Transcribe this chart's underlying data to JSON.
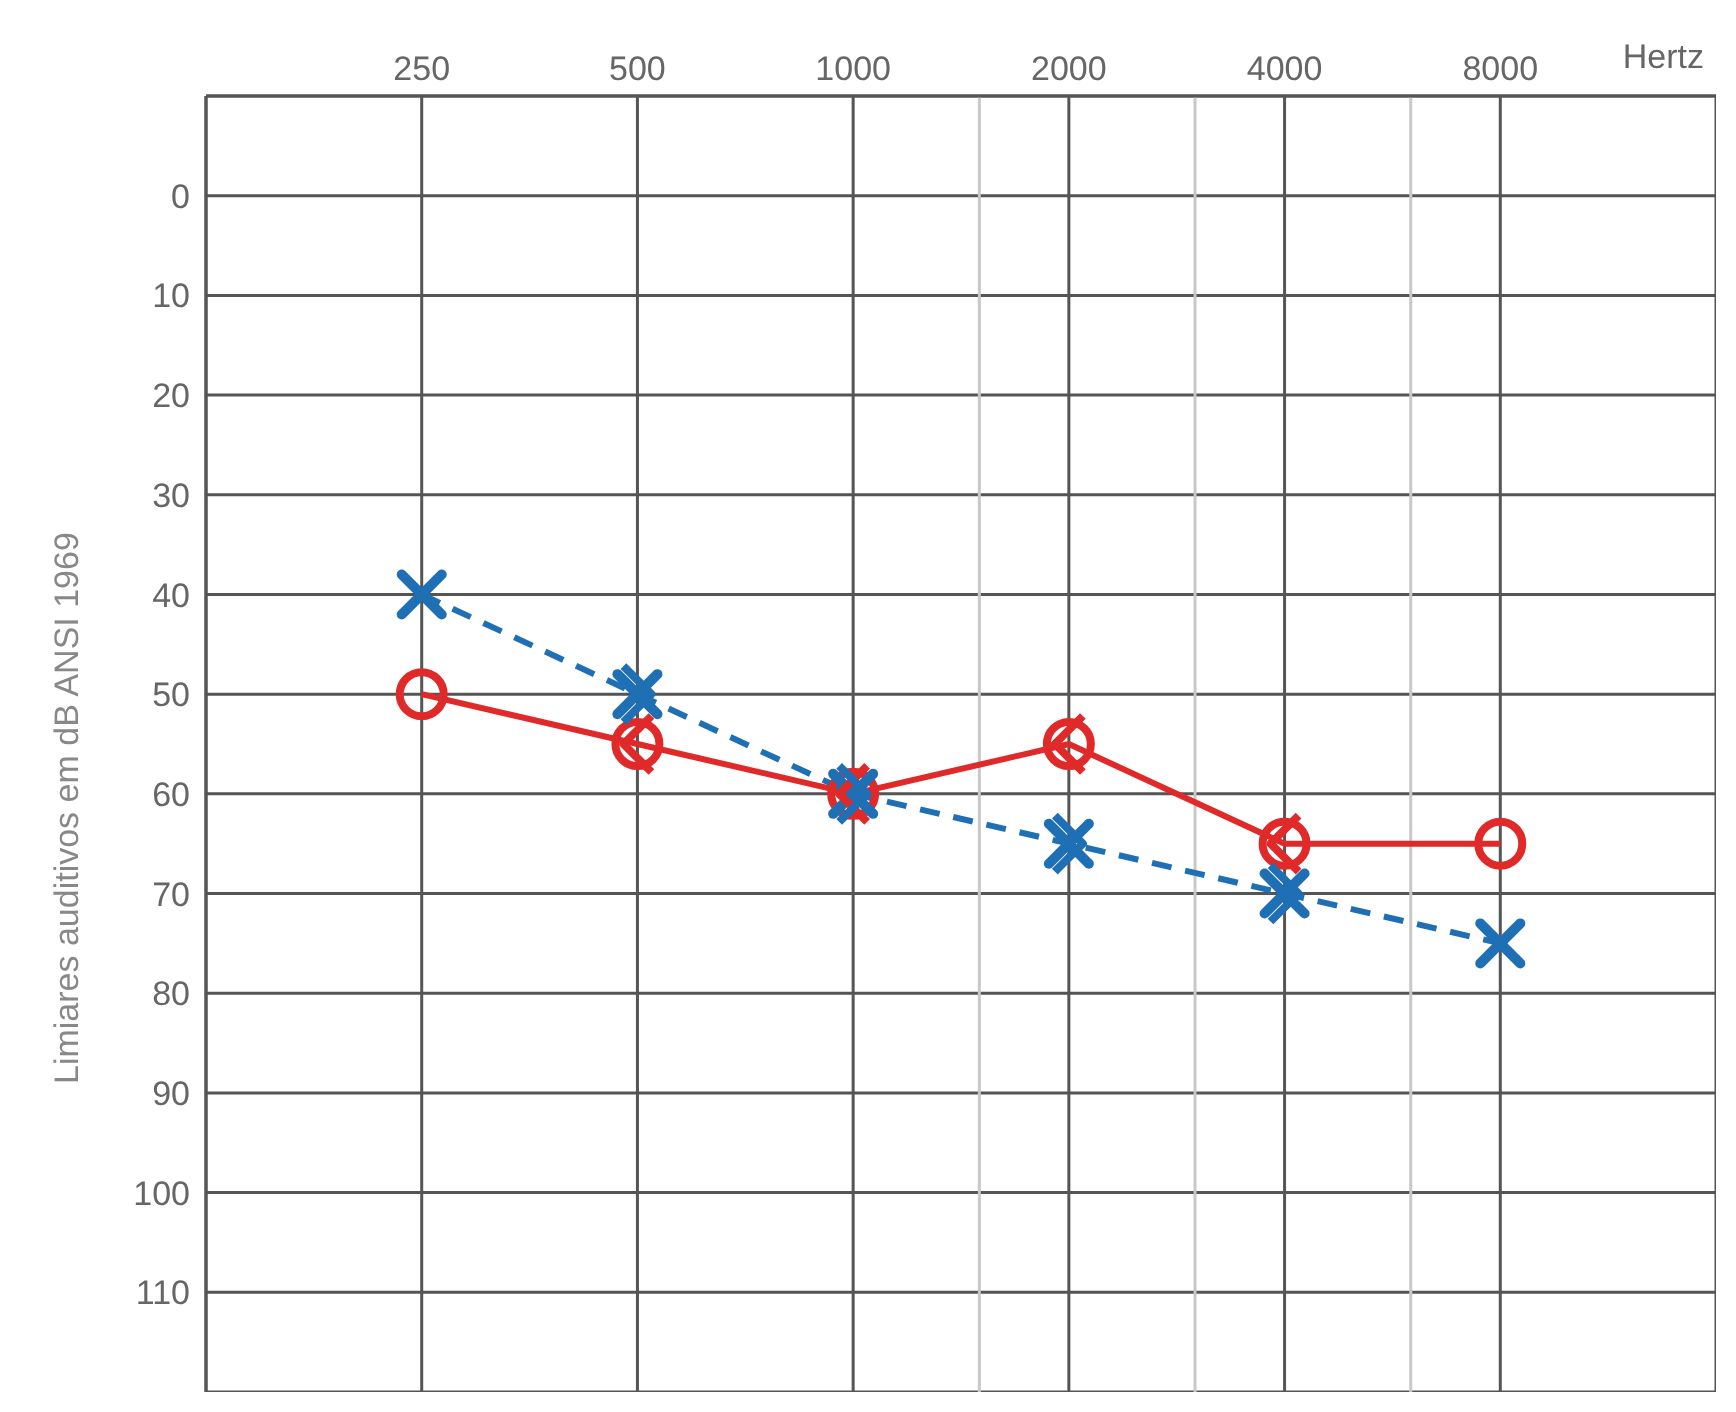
{
  "chart_data": {
    "type": "line",
    "xlabel": "Hertz",
    "ylabel": "Limiares auditivos em dB ANSI 1969",
    "x": [
      250,
      500,
      1000,
      2000,
      4000,
      8000
    ],
    "log": "x",
    "xlim": [
      125,
      16000
    ],
    "xticks": [
      250,
      500,
      1000,
      2000,
      4000,
      8000
    ],
    "ylim": [
      120,
      -10
    ],
    "yticks": [
      0,
      10,
      20,
      30,
      40,
      50,
      60,
      70,
      80,
      90,
      100,
      110
    ],
    "grid": true,
    "ref_lines": [
      {
        "axis": "x",
        "value": 1500,
        "color": "#c8c8c8"
      },
      {
        "axis": "x",
        "value": 3000,
        "color": "#c8c8c8"
      },
      {
        "axis": "x",
        "value": 6000,
        "color": "#c8c8c8"
      }
    ],
    "series": [
      {
        "color": "#e02a2a",
        "marker": "circle",
        "line_style": "solid",
        "values": [
          50,
          55,
          60,
          55,
          65,
          65
        ]
      },
      {
        "color": "#1f6fb5",
        "marker": "cross",
        "line_style": "dashed",
        "values": [
          40,
          50,
          60,
          65,
          70,
          75
        ]
      },
      {
        "type": "scatter",
        "color": "#e02a2a",
        "x": [
          500,
          1000,
          2000,
          4000
        ],
        "values": [
          55,
          60,
          55,
          65
        ]
      },
      {
        "type": "scatter",
        "color": "#1f6fb5",
        "x": [
          500,
          1000,
          2000,
          4000
        ],
        "values": [
          50,
          60,
          65,
          70
        ]
      }
    ]
  }
}
